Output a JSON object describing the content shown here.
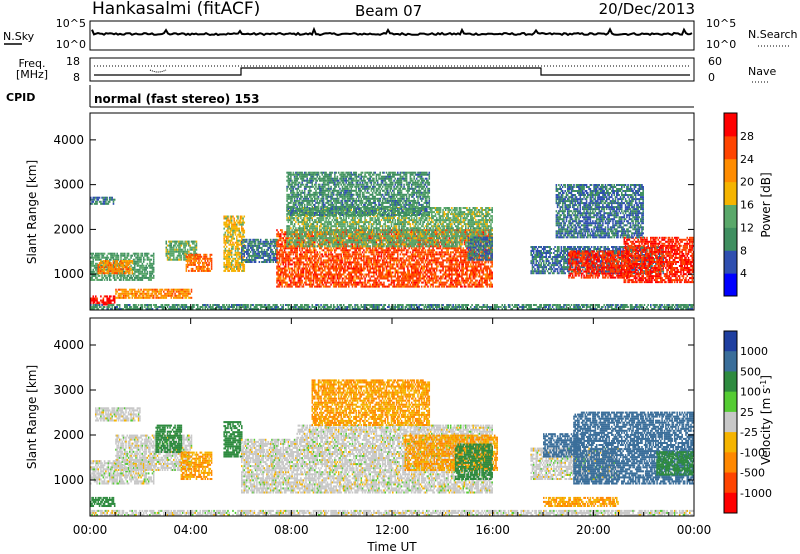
{
  "header": {
    "station": "Hankasalmi (fitACF)",
    "beam": "Beam 07",
    "date": "20/Dec/2013"
  },
  "noise_panel": {
    "left_label": "N.Sky",
    "right_label": "N.Search",
    "left_ticks": [
      "10^5",
      "10^0"
    ],
    "right_ticks": [
      "10^5",
      "10^0"
    ]
  },
  "freq_panel": {
    "left_label_1": "Freq.",
    "left_label_2": "[MHz]",
    "left_ticks": [
      "18",
      "8"
    ],
    "right_label": "Nave",
    "right_ticks": [
      "60",
      "0"
    ]
  },
  "cpid": {
    "label": "CPID",
    "mode": "normal (fast stereo) 153"
  },
  "xaxis": {
    "ticks": [
      "00:00",
      "04:00",
      "08:00",
      "12:00",
      "16:00",
      "20:00",
      "00:00"
    ],
    "label": "Time UT"
  },
  "colors": {
    "power_scale": [
      "#0000ff",
      "#2f4fb0",
      "#3f8f60",
      "#5aa86a",
      "#f5b400",
      "#ff8c00",
      "#ff4400",
      "#ff0000"
    ],
    "velocity_scale": [
      "#1f3fa0",
      "#3a6e9a",
      "#2e8b3f",
      "#55cc33",
      "#c8c8c8",
      "#f5b400",
      "#ff8800",
      "#ff4400",
      "#ff0000"
    ]
  },
  "chart_data": [
    {
      "type": "heatmap",
      "name": "power",
      "ylabel": "Slant Range [km]",
      "xlabel": "Time UT",
      "ylim": [
        200,
        4600
      ],
      "y_ticks": [
        1000,
        2000,
        3000,
        4000
      ],
      "xlim_hours": [
        0,
        24
      ],
      "colorbar": {
        "label": "Power [dB]",
        "range": [
          0,
          32
        ],
        "ticks": [
          "4",
          "8",
          "12",
          "16",
          "20",
          "24",
          "28"
        ]
      },
      "regions": [
        {
          "t": [
            0.0,
            1.0
          ],
          "r": [
            300,
            500
          ],
          "level": 30
        },
        {
          "t": [
            0.0,
            2.5
          ],
          "r": [
            850,
            1450
          ],
          "level": 12
        },
        {
          "t": [
            0.3,
            1.7
          ],
          "r": [
            1000,
            1300
          ],
          "level": 22
        },
        {
          "t": [
            0.0,
            1.0
          ],
          "r": [
            2550,
            2700
          ],
          "level": 8
        },
        {
          "t": [
            1.0,
            4.0
          ],
          "r": [
            450,
            650
          ],
          "level": 22
        },
        {
          "t": [
            3.0,
            4.2
          ],
          "r": [
            1300,
            1750
          ],
          "level": 14
        },
        {
          "t": [
            3.8,
            4.8
          ],
          "r": [
            1050,
            1450
          ],
          "level": 24
        },
        {
          "t": [
            5.3,
            6.1
          ],
          "r": [
            1050,
            2300
          ],
          "level": 18
        },
        {
          "t": [
            6.0,
            7.4
          ],
          "r": [
            1250,
            1750
          ],
          "level": 8
        },
        {
          "t": [
            7.4,
            16.0
          ],
          "r": [
            700,
            2000
          ],
          "level": 26
        },
        {
          "t": [
            7.8,
            16.0
          ],
          "r": [
            1600,
            2500
          ],
          "level": 14
        },
        {
          "t": [
            7.8,
            13.5
          ],
          "r": [
            2300,
            3250
          ],
          "level": 10
        },
        {
          "t": [
            15.0,
            16.0
          ],
          "r": [
            1300,
            1800
          ],
          "level": 8
        },
        {
          "t": [
            17.5,
            22.8
          ],
          "r": [
            1000,
            1600
          ],
          "level": 8
        },
        {
          "t": [
            19.0,
            21.5
          ],
          "r": [
            900,
            1500
          ],
          "level": 28
        },
        {
          "t": [
            21.2,
            24.0
          ],
          "r": [
            800,
            1800
          ],
          "level": 28
        },
        {
          "t": [
            18.5,
            22.0
          ],
          "r": [
            1800,
            3000
          ],
          "level": 8
        },
        {
          "t": [
            0.0,
            24.0
          ],
          "r": [
            200,
            320
          ],
          "level": 10
        }
      ]
    },
    {
      "type": "heatmap",
      "name": "velocity",
      "ylabel": "Slant Range [km]",
      "xlabel": "Time UT",
      "ylim": [
        200,
        4600
      ],
      "y_ticks": [
        1000,
        2000,
        3000,
        4000
      ],
      "xlim_hours": [
        0,
        24
      ],
      "colorbar": {
        "label": "Velocity [m s-1]",
        "range": [
          -1000,
          1000
        ],
        "ticks": [
          "1000",
          "500",
          "100",
          "25",
          "-25",
          "-100",
          "-500",
          "-1000"
        ]
      },
      "regions": [
        {
          "t": [
            0.0,
            1.0
          ],
          "r": [
            400,
            600
          ],
          "level": 100
        },
        {
          "t": [
            0.2,
            2.0
          ],
          "r": [
            2300,
            2600
          ],
          "level": 0
        },
        {
          "t": [
            0.0,
            2.5
          ],
          "r": [
            900,
            1400
          ],
          "level": 0
        },
        {
          "t": [
            1.0,
            4.0
          ],
          "r": [
            1200,
            2000
          ],
          "level": 0
        },
        {
          "t": [
            2.6,
            3.6
          ],
          "r": [
            1600,
            2200
          ],
          "level": 100
        },
        {
          "t": [
            3.6,
            4.8
          ],
          "r": [
            1000,
            1600
          ],
          "level": -100
        },
        {
          "t": [
            5.3,
            6.0
          ],
          "r": [
            1500,
            2300
          ],
          "level": 100
        },
        {
          "t": [
            6.0,
            8.2
          ],
          "r": [
            700,
            1900
          ],
          "level": 0
        },
        {
          "t": [
            8.2,
            16.0
          ],
          "r": [
            700,
            2200
          ],
          "level": 0
        },
        {
          "t": [
            8.8,
            13.5
          ],
          "r": [
            2200,
            3200
          ],
          "level": -100
        },
        {
          "t": [
            12.5,
            16.2
          ],
          "r": [
            1200,
            2000
          ],
          "level": -100
        },
        {
          "t": [
            14.5,
            16.0
          ],
          "r": [
            1000,
            1800
          ],
          "level": 100
        },
        {
          "t": [
            17.5,
            21.0
          ],
          "r": [
            1000,
            1700
          ],
          "level": 0
        },
        {
          "t": [
            18.0,
            19.5
          ],
          "r": [
            1500,
            2000
          ],
          "level": 500
        },
        {
          "t": [
            19.2,
            24.0
          ],
          "r": [
            900,
            2500
          ],
          "level": 500
        },
        {
          "t": [
            22.5,
            24.0
          ],
          "r": [
            1100,
            1600
          ],
          "level": 100
        },
        {
          "t": [
            18.0,
            21.0
          ],
          "r": [
            400,
            600
          ],
          "level": -100
        },
        {
          "t": [
            0.0,
            24.0
          ],
          "r": [
            200,
            320
          ],
          "level": 0
        }
      ]
    }
  ]
}
